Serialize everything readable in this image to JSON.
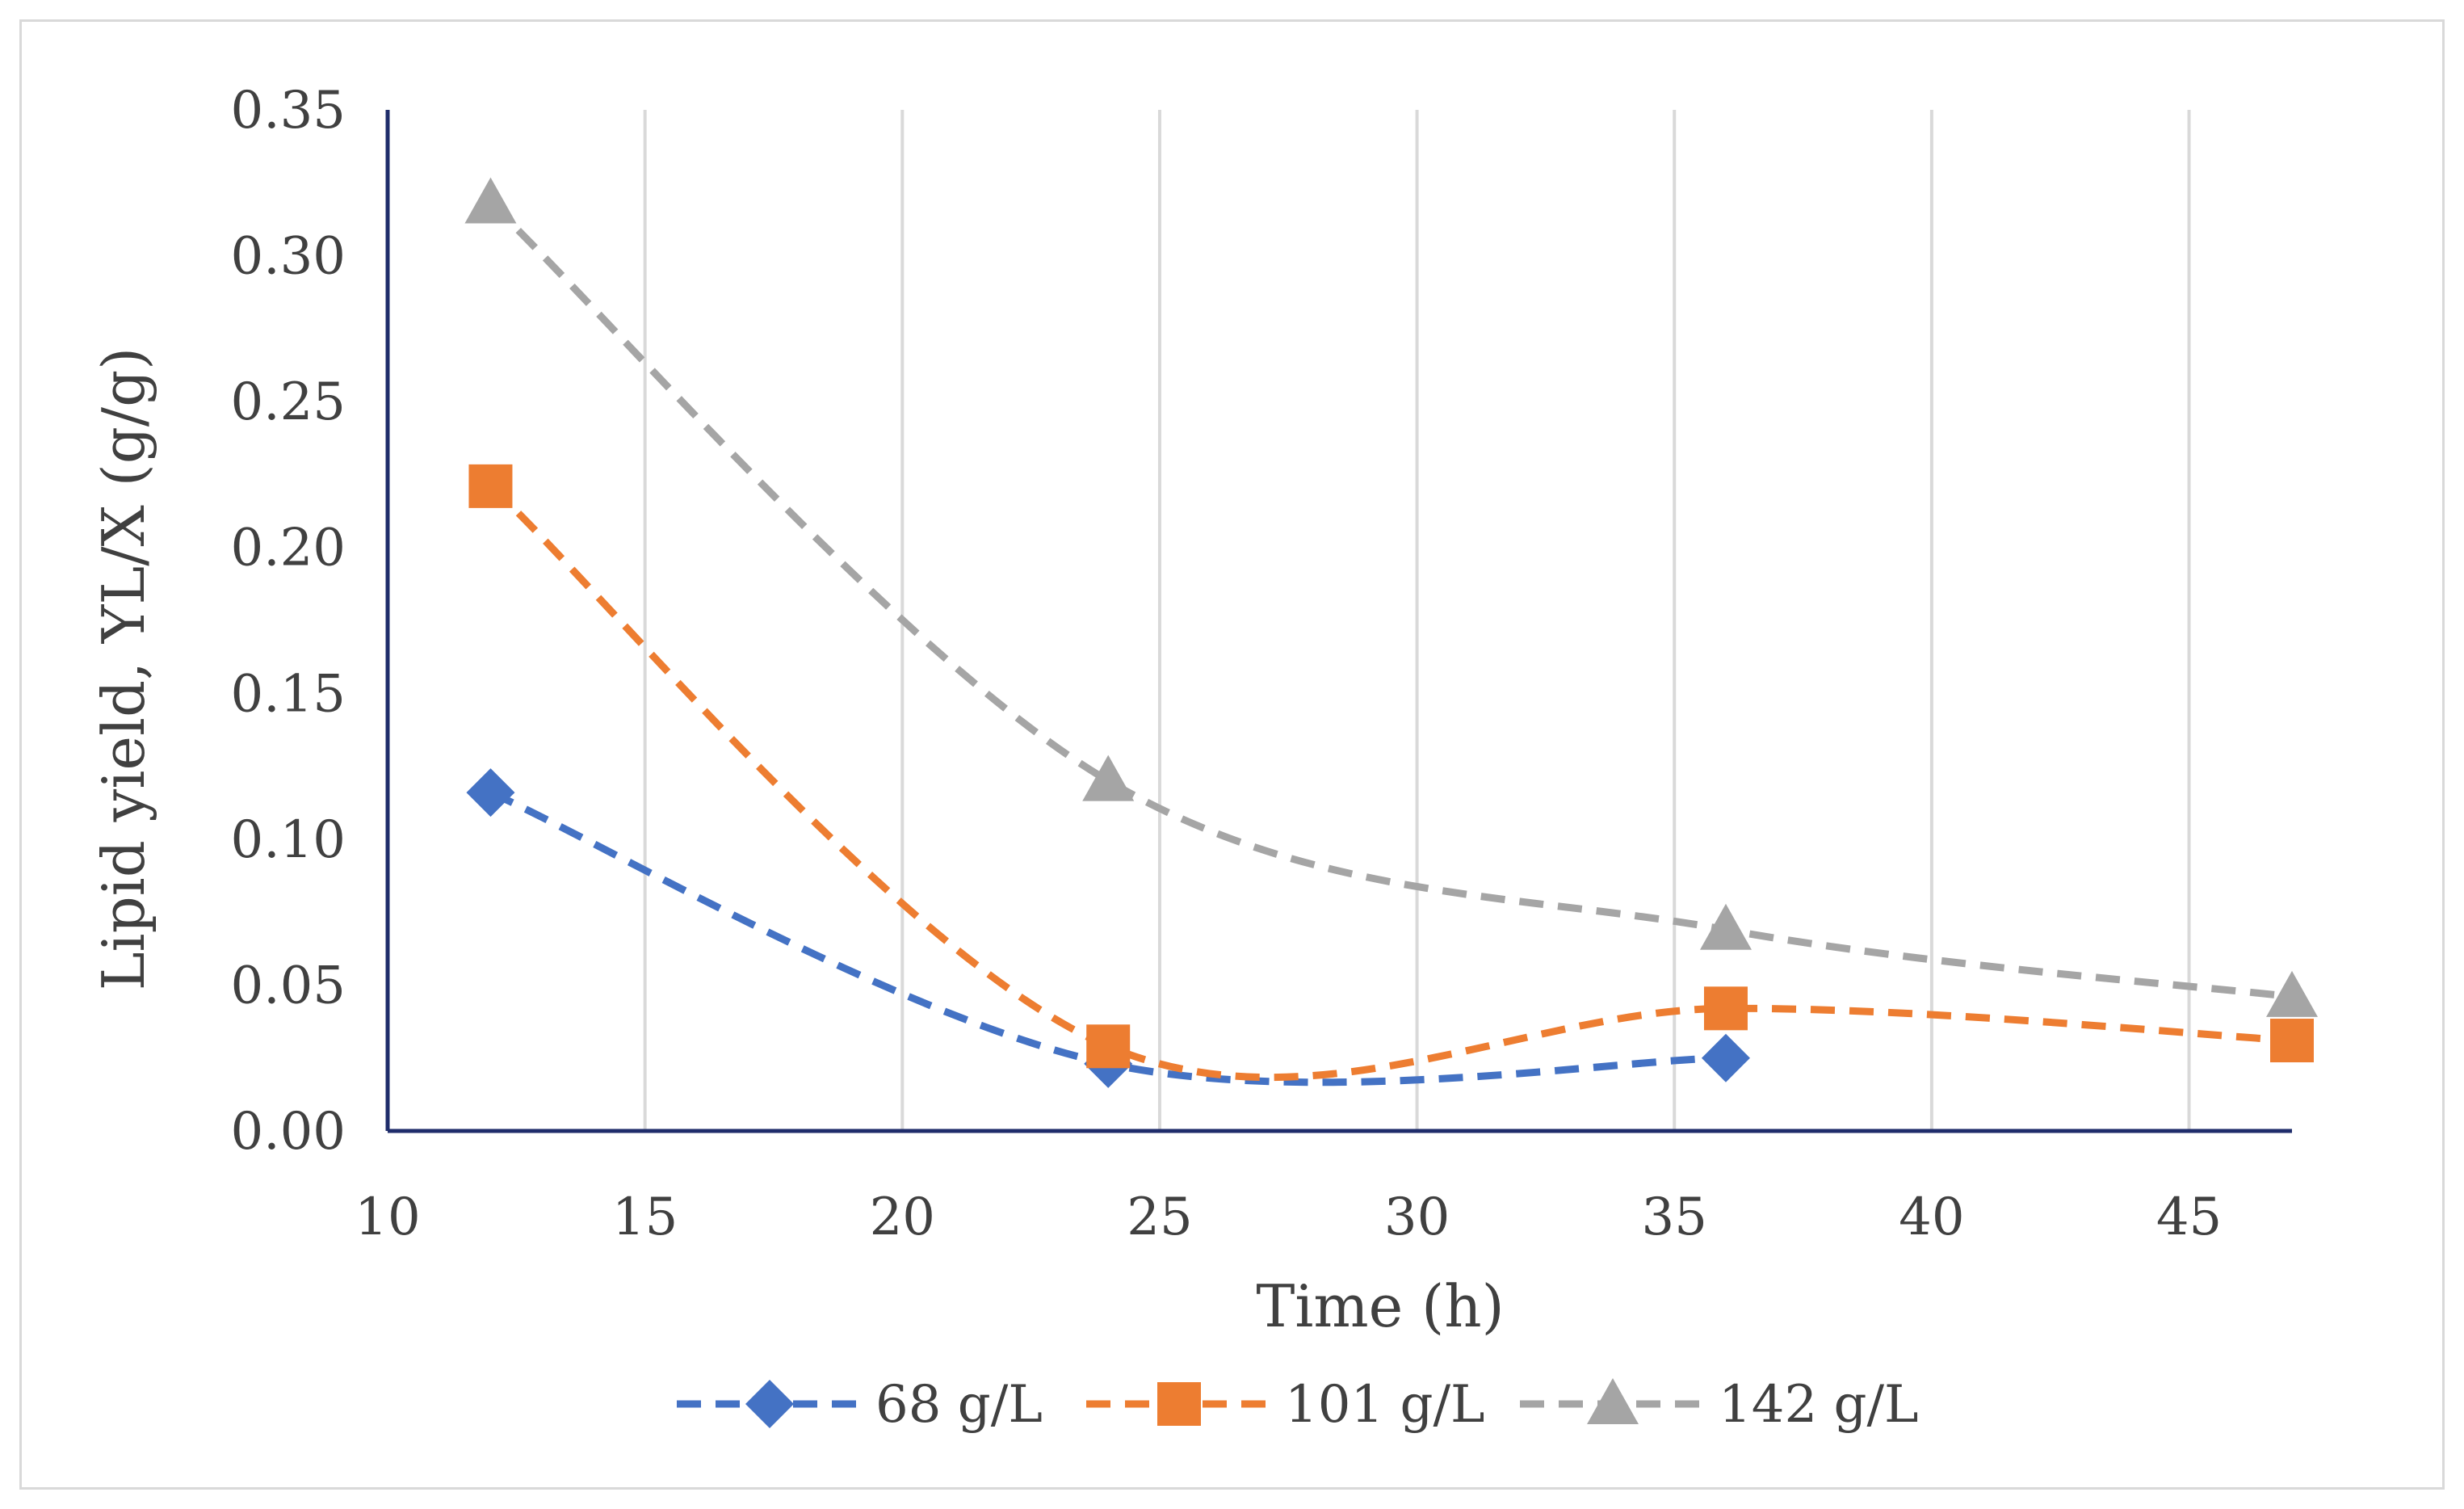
{
  "chart_data": {
    "type": "line",
    "title": "",
    "xlabel": "Time (h)",
    "ylabel": "Lipid yield, YL/X (g/g)",
    "xlim": [
      10,
      47
    ],
    "ylim": [
      0,
      0.35
    ],
    "xticks": [
      "10",
      "15",
      "20",
      "25",
      "30",
      "35",
      "40",
      "45"
    ],
    "yticks": [
      "0.00",
      "0.05",
      "0.10",
      "0.15",
      "0.20",
      "0.25",
      "0.30",
      "0.35"
    ],
    "grid": "vertical",
    "legend_position": "bottom",
    "series": [
      {
        "name": "68 g/L",
        "color": "#4472c4",
        "marker": "diamond",
        "line": "dashed",
        "x": [
          12,
          24,
          36
        ],
        "y": [
          0.116,
          0.023,
          0.025
        ]
      },
      {
        "name": "101 g/L",
        "color": "#ed7d31",
        "marker": "square",
        "line": "dashed",
        "x": [
          12,
          24,
          36,
          47
        ],
        "y": [
          0.221,
          0.029,
          0.042,
          0.031
        ]
      },
      {
        "name": "142 g/L",
        "color": "#a5a5a5",
        "marker": "triangle",
        "line": "dashed",
        "x": [
          12,
          24,
          36,
          47
        ],
        "y": [
          0.318,
          0.12,
          0.069,
          0.046
        ]
      }
    ]
  }
}
